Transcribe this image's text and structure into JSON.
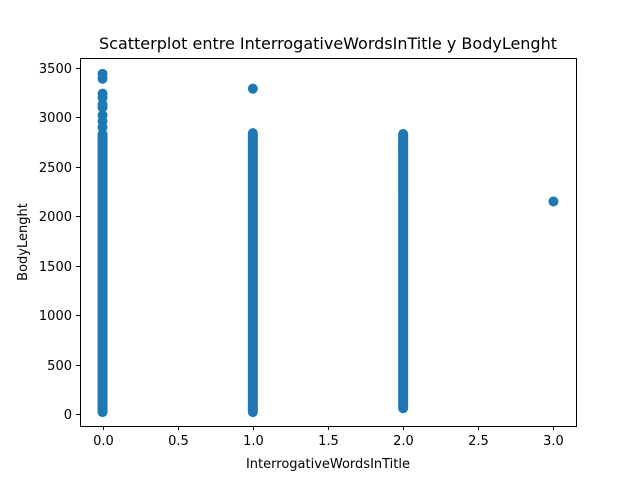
{
  "chart_data": {
    "type": "scatter",
    "title": "Scatterplot entre InterrogativeWordsInTitle y BodyLenght",
    "xlabel": "InterrogativeWordsInTitle",
    "ylabel": "BodyLenght",
    "xlim": [
      -0.15,
      3.15
    ],
    "ylim": [
      -120,
      3600
    ],
    "xticks": [
      0.0,
      0.5,
      1.0,
      1.5,
      2.0,
      2.5,
      3.0
    ],
    "xtick_labels": [
      "0.0",
      "0.5",
      "1.0",
      "1.5",
      "2.0",
      "2.5",
      "3.0"
    ],
    "yticks": [
      0,
      500,
      1000,
      1500,
      2000,
      2500,
      3000,
      3500
    ],
    "ytick_labels": [
      "0",
      "500",
      "1000",
      "1500",
      "2000",
      "2500",
      "3000",
      "3500"
    ],
    "grid": false,
    "color": "#1f77b4",
    "series": [
      {
        "columns": [
          {
            "x": 0,
            "y_min": 20,
            "y_max": 2830
          },
          {
            "x": 1,
            "y_min": 20,
            "y_max": 2840
          },
          {
            "x": 2,
            "y_min": 60,
            "y_max": 2830
          }
        ],
        "points": [
          {
            "x": 0,
            "y": 3440
          },
          {
            "x": 0,
            "y": 3390
          },
          {
            "x": 0,
            "y": 3240
          },
          {
            "x": 0,
            "y": 3200
          },
          {
            "x": 0,
            "y": 3130
          },
          {
            "x": 0,
            "y": 3100
          },
          {
            "x": 0,
            "y": 3020
          },
          {
            "x": 0,
            "y": 2960
          },
          {
            "x": 0,
            "y": 2900
          },
          {
            "x": 1,
            "y": 3290
          },
          {
            "x": 2,
            "y": 2830
          },
          {
            "x": 2,
            "y": 2780
          },
          {
            "x": 2,
            "y": 2720
          },
          {
            "x": 2,
            "y": 2660
          },
          {
            "x": 2,
            "y": 2580
          },
          {
            "x": 2,
            "y": 2510
          },
          {
            "x": 2,
            "y": 2440
          },
          {
            "x": 2,
            "y": 2380
          },
          {
            "x": 2,
            "y": 2300
          },
          {
            "x": 3,
            "y": 2150
          }
        ]
      }
    ]
  }
}
